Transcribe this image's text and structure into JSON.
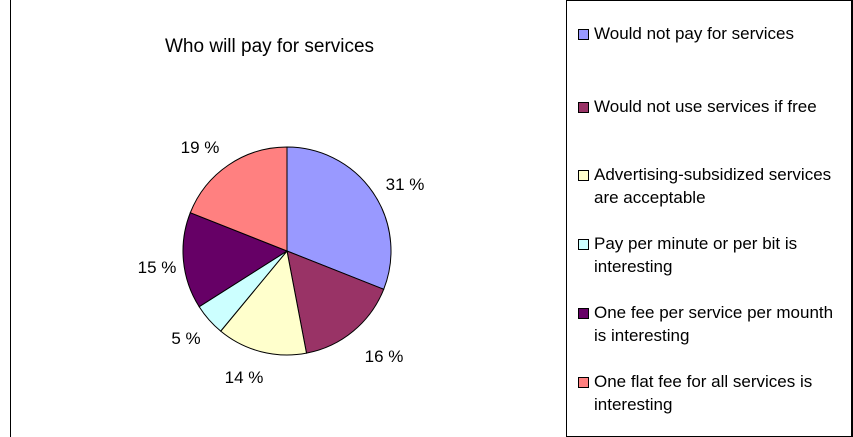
{
  "chart_data": {
    "type": "pie",
    "title": "Who will pay for services",
    "categories": [
      "Would not pay for services",
      "Would not use services if free",
      "Advertising-subsidized services are acceptable",
      "Pay per minute or per bit is interesting",
      "One fee per service per mounth is interesting",
      "One flat fee for all services is interesting"
    ],
    "values": [
      31,
      16,
      14,
      5,
      15,
      19
    ],
    "data_labels": [
      "31 %",
      "16 %",
      "14 %",
      "5 %",
      "15 %",
      "19 %"
    ],
    "colors": [
      "#9999ff",
      "#993366",
      "#ffffcc",
      "#ccffff",
      "#660066",
      "#ff8080"
    ],
    "legend_position": "right"
  }
}
